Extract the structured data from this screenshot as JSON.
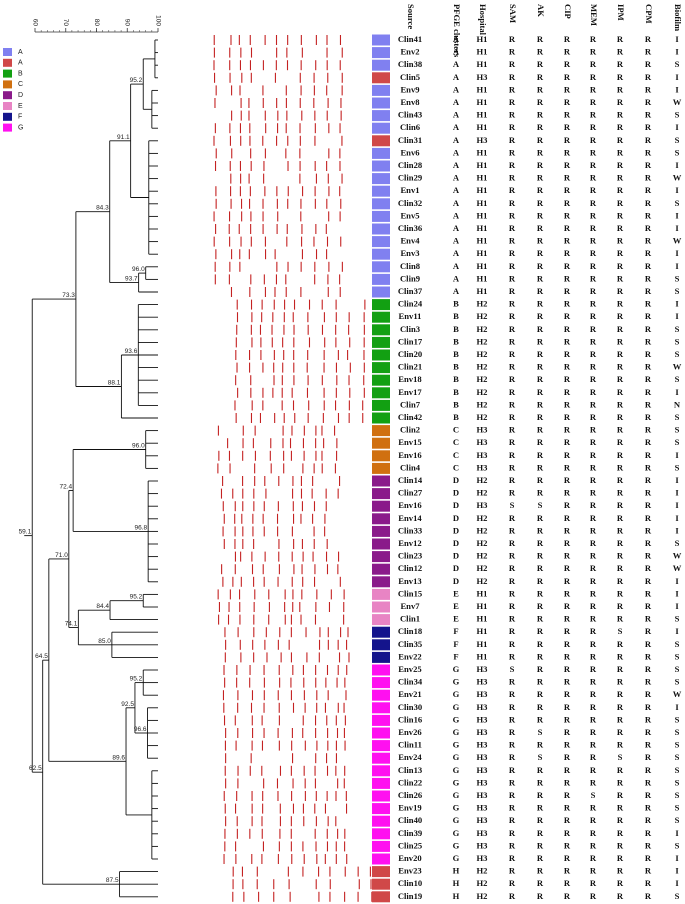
{
  "legend": [
    {
      "label": "A",
      "color": "#8080f0"
    },
    {
      "label": "A",
      "color": "#d04848"
    },
    {
      "label": "B",
      "color": "#12a012"
    },
    {
      "label": "C",
      "color": "#d07010"
    },
    {
      "label": "D",
      "color": "#8a1a8a"
    },
    {
      "label": "E",
      "color": "#e884c4"
    },
    {
      "label": "F",
      "color": "#14148c"
    },
    {
      "label": "G",
      "color": "#ff10f0"
    }
  ],
  "scale": {
    "ticks": [
      60,
      70,
      80,
      90,
      100
    ]
  },
  "nodes": [
    95.2,
    91.1,
    84.3,
    {
      "value": 96,
      "label": "96.0"
    },
    93.7,
    73.3,
    93.6,
    88.1,
    {
      "value": 96,
      "label": "96.0"
    },
    72.4,
    96.8,
    {
      "value": 71,
      "label": "71.0"
    },
    95.2,
    84.4,
    74.1,
    {
      "value": 85,
      "label": "85.0"
    },
    59.1,
    64.5,
    95.2,
    92.5,
    96.6,
    89.6,
    87.5,
    62.5
  ],
  "table": {
    "headers": [
      "Source",
      "PFGE clusters",
      "Hospital",
      "SAM",
      "AK",
      "CIP",
      "MEM",
      "IPM",
      "CPM",
      "Biofilm"
    ],
    "rows": [
      {
        "color": "#8080f0",
        "cells": [
          "Clin41",
          "A",
          "H1",
          "R",
          "R",
          "R",
          "R",
          "R",
          "R",
          "I"
        ]
      },
      {
        "color": "#8080f0",
        "cells": [
          "Env2",
          "A",
          "H1",
          "R",
          "R",
          "R",
          "R",
          "R",
          "R",
          "I"
        ]
      },
      {
        "color": "#8080f0",
        "cells": [
          "Clin38",
          "A",
          "H1",
          "R",
          "R",
          "R",
          "R",
          "R",
          "R",
          "S"
        ]
      },
      {
        "color": "#d04848",
        "cells": [
          "Clin5",
          "A",
          "H3",
          "R",
          "R",
          "R",
          "R",
          "R",
          "R",
          "I"
        ]
      },
      {
        "color": "#8080f0",
        "cells": [
          "Env9",
          "A",
          "H1",
          "R",
          "R",
          "R",
          "R",
          "R",
          "R",
          "I"
        ]
      },
      {
        "color": "#8080f0",
        "cells": [
          "Env8",
          "A",
          "H1",
          "R",
          "R",
          "R",
          "R",
          "R",
          "R",
          "W"
        ]
      },
      {
        "color": "#8080f0",
        "cells": [
          "Clin43",
          "A",
          "H1",
          "R",
          "R",
          "R",
          "R",
          "R",
          "R",
          "S"
        ]
      },
      {
        "color": "#8080f0",
        "cells": [
          "Clin6",
          "A",
          "H1",
          "R",
          "R",
          "R",
          "R",
          "R",
          "R",
          "I"
        ]
      },
      {
        "color": "#d04848",
        "cells": [
          "Clin31",
          "A",
          "H3",
          "R",
          "R",
          "R",
          "R",
          "R",
          "R",
          "S"
        ]
      },
      {
        "color": "#8080f0",
        "cells": [
          "Env6",
          "A",
          "H1",
          "R",
          "R",
          "R",
          "R",
          "R",
          "R",
          "S"
        ]
      },
      {
        "color": "#8080f0",
        "cells": [
          "Clin28",
          "A",
          "H1",
          "R",
          "R",
          "R",
          "R",
          "R",
          "R",
          "I"
        ]
      },
      {
        "color": "#8080f0",
        "cells": [
          "Clin29",
          "A",
          "H1",
          "R",
          "R",
          "R",
          "R",
          "R",
          "R",
          "W"
        ]
      },
      {
        "color": "#8080f0",
        "cells": [
          "Env1",
          "A",
          "H1",
          "R",
          "R",
          "R",
          "R",
          "R",
          "R",
          "I"
        ]
      },
      {
        "color": "#8080f0",
        "cells": [
          "Clin32",
          "A",
          "H1",
          "R",
          "R",
          "R",
          "R",
          "R",
          "R",
          "S"
        ]
      },
      {
        "color": "#8080f0",
        "cells": [
          "Env5",
          "A",
          "H1",
          "R",
          "R",
          "R",
          "R",
          "R",
          "R",
          "I"
        ]
      },
      {
        "color": "#8080f0",
        "cells": [
          "Clin36",
          "A",
          "H1",
          "R",
          "R",
          "R",
          "R",
          "R",
          "R",
          "I"
        ]
      },
      {
        "color": "#8080f0",
        "cells": [
          "Env4",
          "A",
          "H1",
          "R",
          "R",
          "R",
          "R",
          "R",
          "R",
          "W"
        ]
      },
      {
        "color": "#8080f0",
        "cells": [
          "Env3",
          "A",
          "H1",
          "R",
          "R",
          "R",
          "R",
          "R",
          "R",
          "I"
        ]
      },
      {
        "color": "#8080f0",
        "cells": [
          "Clin8",
          "A",
          "H1",
          "R",
          "R",
          "R",
          "R",
          "R",
          "R",
          "I"
        ]
      },
      {
        "color": "#8080f0",
        "cells": [
          "Clin9",
          "A",
          "H1",
          "R",
          "R",
          "R",
          "R",
          "R",
          "R",
          "S"
        ]
      },
      {
        "color": "#8080f0",
        "cells": [
          "Clin37",
          "A",
          "H1",
          "R",
          "R",
          "R",
          "R",
          "R",
          "R",
          "S"
        ]
      },
      {
        "color": "#12a012",
        "cells": [
          "Clin24",
          "B",
          "H2",
          "R",
          "R",
          "R",
          "R",
          "R",
          "R",
          "I"
        ]
      },
      {
        "color": "#12a012",
        "cells": [
          "Env11",
          "B",
          "H2",
          "R",
          "R",
          "R",
          "R",
          "R",
          "R",
          "I"
        ]
      },
      {
        "color": "#12a012",
        "cells": [
          "Clin3",
          "B",
          "H2",
          "R",
          "R",
          "R",
          "R",
          "R",
          "R",
          "S"
        ]
      },
      {
        "color": "#12a012",
        "cells": [
          "Clin17",
          "B",
          "H2",
          "R",
          "R",
          "R",
          "R",
          "R",
          "R",
          "S"
        ]
      },
      {
        "color": "#12a012",
        "cells": [
          "Clin20",
          "B",
          "H2",
          "R",
          "R",
          "R",
          "R",
          "R",
          "R",
          "S"
        ]
      },
      {
        "color": "#12a012",
        "cells": [
          "Clin21",
          "B",
          "H2",
          "R",
          "R",
          "R",
          "R",
          "R",
          "R",
          "W"
        ]
      },
      {
        "color": "#12a012",
        "cells": [
          "Env18",
          "B",
          "H2",
          "R",
          "R",
          "R",
          "R",
          "R",
          "R",
          "S"
        ]
      },
      {
        "color": "#12a012",
        "cells": [
          "Env17",
          "B",
          "H2",
          "R",
          "R",
          "R",
          "R",
          "R",
          "R",
          "I"
        ]
      },
      {
        "color": "#12a012",
        "cells": [
          "Clin7",
          "B",
          "H2",
          "R",
          "R",
          "R",
          "R",
          "R",
          "R",
          "N"
        ]
      },
      {
        "color": "#12a012",
        "cells": [
          "Clin42",
          "B",
          "H2",
          "R",
          "R",
          "R",
          "R",
          "R",
          "R",
          "S"
        ]
      },
      {
        "color": "#d07010",
        "cells": [
          "Clin2",
          "C",
          "H3",
          "R",
          "R",
          "R",
          "R",
          "R",
          "R",
          "S"
        ]
      },
      {
        "color": "#d07010",
        "cells": [
          "Env15",
          "C",
          "H3",
          "R",
          "R",
          "R",
          "R",
          "R",
          "R",
          "S"
        ]
      },
      {
        "color": "#d07010",
        "cells": [
          "Env16",
          "C",
          "H3",
          "R",
          "R",
          "R",
          "R",
          "R",
          "R",
          "I"
        ]
      },
      {
        "color": "#d07010",
        "cells": [
          "Clin4",
          "C",
          "H3",
          "R",
          "R",
          "R",
          "R",
          "R",
          "R",
          "S"
        ]
      },
      {
        "color": "#8a1a8a",
        "cells": [
          "Clin14",
          "D",
          "H2",
          "R",
          "R",
          "R",
          "R",
          "R",
          "R",
          "I"
        ]
      },
      {
        "color": "#8a1a8a",
        "cells": [
          "Clin27",
          "D",
          "H2",
          "R",
          "R",
          "R",
          "R",
          "R",
          "R",
          "I"
        ]
      },
      {
        "color": "#8a1a8a",
        "cells": [
          "Env16",
          "D",
          "H3",
          "S",
          "S",
          "R",
          "R",
          "R",
          "R",
          "I"
        ]
      },
      {
        "color": "#8a1a8a",
        "cells": [
          "Env14",
          "D",
          "H2",
          "R",
          "R",
          "R",
          "R",
          "R",
          "R",
          "I"
        ]
      },
      {
        "color": "#8a1a8a",
        "cells": [
          "Clin33",
          "D",
          "H2",
          "R",
          "R",
          "R",
          "R",
          "R",
          "R",
          "I"
        ]
      },
      {
        "color": "#8a1a8a",
        "cells": [
          "Env12",
          "D",
          "H2",
          "R",
          "R",
          "R",
          "R",
          "R",
          "R",
          "S"
        ]
      },
      {
        "color": "#8a1a8a",
        "cells": [
          "Clin23",
          "D",
          "H2",
          "R",
          "R",
          "R",
          "R",
          "R",
          "R",
          "W"
        ]
      },
      {
        "color": "#8a1a8a",
        "cells": [
          "Clin12",
          "D",
          "H2",
          "R",
          "R",
          "R",
          "R",
          "R",
          "R",
          "W"
        ]
      },
      {
        "color": "#8a1a8a",
        "cells": [
          "Env13",
          "D",
          "H2",
          "R",
          "R",
          "R",
          "R",
          "R",
          "R",
          "I"
        ]
      },
      {
        "color": "#e884c4",
        "cells": [
          "Clin15",
          "E",
          "H1",
          "R",
          "R",
          "R",
          "R",
          "R",
          "R",
          "I"
        ]
      },
      {
        "color": "#e884c4",
        "cells": [
          "Env7",
          "E",
          "H1",
          "R",
          "R",
          "R",
          "R",
          "R",
          "R",
          "I"
        ]
      },
      {
        "color": "#e884c4",
        "cells": [
          "Clin1",
          "E",
          "H1",
          "R",
          "R",
          "R",
          "R",
          "R",
          "R",
          "S"
        ]
      },
      {
        "color": "#14148c",
        "cells": [
          "Clin18",
          "F",
          "H1",
          "R",
          "R",
          "R",
          "R",
          "S",
          "R",
          "I"
        ]
      },
      {
        "color": "#14148c",
        "cells": [
          "Clin35",
          "F",
          "H1",
          "R",
          "R",
          "R",
          "R",
          "R",
          "R",
          "S"
        ]
      },
      {
        "color": "#14148c",
        "cells": [
          "Env22",
          "F",
          "H1",
          "R",
          "R",
          "R",
          "R",
          "R",
          "R",
          "S"
        ]
      },
      {
        "color": "#ff10f0",
        "cells": [
          "Env25",
          "G",
          "H3",
          "S",
          "R",
          "R",
          "R",
          "R",
          "R",
          "S"
        ]
      },
      {
        "color": "#ff10f0",
        "cells": [
          "Clin34",
          "G",
          "H3",
          "R",
          "R",
          "R",
          "R",
          "R",
          "R",
          "S"
        ]
      },
      {
        "color": "#ff10f0",
        "cells": [
          "Env21",
          "G",
          "H3",
          "R",
          "R",
          "R",
          "R",
          "R",
          "R",
          "W"
        ]
      },
      {
        "color": "#ff10f0",
        "cells": [
          "Clin30",
          "G",
          "H3",
          "R",
          "R",
          "R",
          "R",
          "R",
          "R",
          "I"
        ]
      },
      {
        "color": "#ff10f0",
        "cells": [
          "Clin16",
          "G",
          "H3",
          "R",
          "R",
          "R",
          "R",
          "R",
          "R",
          "S"
        ]
      },
      {
        "color": "#ff10f0",
        "cells": [
          "Env26",
          "G",
          "H3",
          "R",
          "S",
          "R",
          "R",
          "R",
          "R",
          "S"
        ]
      },
      {
        "color": "#ff10f0",
        "cells": [
          "Clin11",
          "G",
          "H3",
          "R",
          "R",
          "R",
          "R",
          "R",
          "R",
          "S"
        ]
      },
      {
        "color": "#ff10f0",
        "cells": [
          "Env24",
          "G",
          "H3",
          "R",
          "S",
          "R",
          "R",
          "S",
          "R",
          "S"
        ]
      },
      {
        "color": "#ff10f0",
        "cells": [
          "Clin13",
          "G",
          "H3",
          "R",
          "R",
          "R",
          "R",
          "R",
          "R",
          "S"
        ]
      },
      {
        "color": "#ff10f0",
        "cells": [
          "Clin22",
          "G",
          "H3",
          "R",
          "R",
          "R",
          "R",
          "R",
          "R",
          "S"
        ]
      },
      {
        "color": "#ff10f0",
        "cells": [
          "Clin26",
          "G",
          "H3",
          "R",
          "R",
          "R",
          "S",
          "R",
          "R",
          "S"
        ]
      },
      {
        "color": "#ff10f0",
        "cells": [
          "Env19",
          "G",
          "H3",
          "R",
          "R",
          "R",
          "R",
          "R",
          "R",
          "S"
        ]
      },
      {
        "color": "#ff10f0",
        "cells": [
          "Clin40",
          "G",
          "H3",
          "R",
          "R",
          "R",
          "R",
          "R",
          "R",
          "S"
        ]
      },
      {
        "color": "#ff10f0",
        "cells": [
          "Clin39",
          "G",
          "H3",
          "R",
          "R",
          "R",
          "R",
          "R",
          "R",
          "I"
        ]
      },
      {
        "color": "#ff10f0",
        "cells": [
          "Clin25",
          "G",
          "H3",
          "R",
          "R",
          "R",
          "R",
          "R",
          "R",
          "S"
        ]
      },
      {
        "color": "#ff10f0",
        "cells": [
          "Env20",
          "G",
          "H3",
          "R",
          "R",
          "R",
          "R",
          "R",
          "R",
          "I"
        ]
      },
      {
        "color": "#d04848",
        "cells": [
          "Env23",
          "H",
          "H2",
          "R",
          "R",
          "R",
          "R",
          "R",
          "R",
          "I"
        ]
      },
      {
        "color": "#d04848",
        "cells": [
          "Clin10",
          "H",
          "H2",
          "R",
          "R",
          "R",
          "R",
          "R",
          "R",
          "I"
        ]
      },
      {
        "color": "#d04848",
        "cells": [
          "Clin19",
          "H",
          "H2",
          "R",
          "R",
          "R",
          "R",
          "R",
          "R",
          "S"
        ]
      }
    ]
  }
}
